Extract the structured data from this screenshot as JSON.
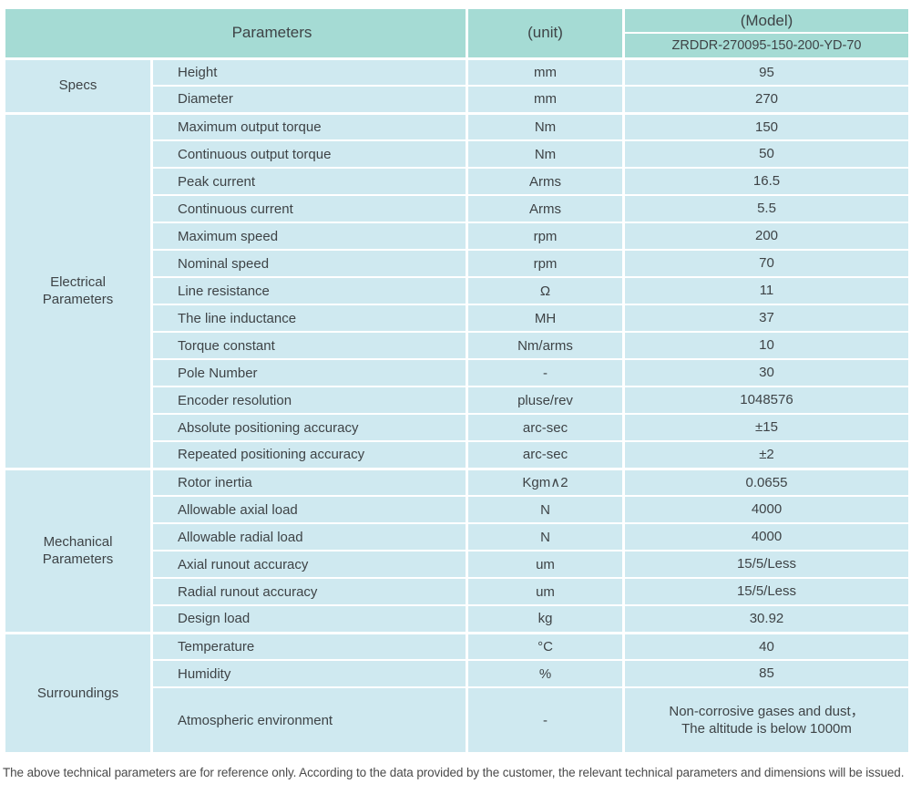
{
  "header": {
    "parameters": "Parameters",
    "unit": "(unit)",
    "model": "(Model)",
    "model_code": "ZRDDR-270095-150-200-YD-70"
  },
  "groups": [
    {
      "label": "Specs",
      "rows": [
        {
          "param": "Height",
          "unit": "mm",
          "value": "95"
        },
        {
          "param": "Diameter",
          "unit": "mm",
          "value": "270"
        }
      ]
    },
    {
      "label": "Electrical Parameters",
      "rows": [
        {
          "param": "Maximum output torque",
          "unit": "Nm",
          "value": "150"
        },
        {
          "param": "Continuous output torque",
          "unit": "Nm",
          "value": "50"
        },
        {
          "param": "Peak current",
          "unit": "Arms",
          "value": "16.5"
        },
        {
          "param": "Continuous current",
          "unit": "Arms",
          "value": "5.5"
        },
        {
          "param": "Maximum speed",
          "unit": "rpm",
          "value": "200"
        },
        {
          "param": "Nominal speed",
          "unit": "rpm",
          "value": "70"
        },
        {
          "param": "Line resistance",
          "unit": "Ω",
          "value": "11"
        },
        {
          "param": "The line inductance",
          "unit": "MH",
          "value": "37"
        },
        {
          "param": "Torque constant",
          "unit": "Nm/arms",
          "value": "10"
        },
        {
          "param": "Pole Number",
          "unit": "-",
          "value": "30"
        },
        {
          "param": "Encoder resolution",
          "unit": "pluse/rev",
          "value": "1048576"
        },
        {
          "param": "Absolute positioning accuracy",
          "unit": "arc-sec",
          "value": "±15"
        },
        {
          "param": "Repeated positioning accuracy",
          "unit": "arc-sec",
          "value": "±2"
        }
      ]
    },
    {
      "label": "Mechanical Parameters",
      "rows": [
        {
          "param": "Rotor inertia",
          "unit": "Kgm∧2",
          "value": "0.0655"
        },
        {
          "param": "Allowable axial load",
          "unit": "N",
          "value": "4000"
        },
        {
          "param": "Allowable radial load",
          "unit": "N",
          "value": "4000"
        },
        {
          "param": "Axial runout accuracy",
          "unit": "um",
          "value": "15/5/Less"
        },
        {
          "param": "Radial runout accuracy",
          "unit": "um",
          "value": "15/5/Less"
        },
        {
          "param": "Design load",
          "unit": "kg",
          "value": "30.92"
        }
      ]
    },
    {
      "label": "Surroundings",
      "rows": [
        {
          "param": "Temperature",
          "unit": "°C",
          "value": "40"
        },
        {
          "param": "Humidity",
          "unit": "%",
          "value": "85"
        },
        {
          "param": "Atmospheric environment",
          "unit": "-",
          "value": "Non-corrosive gases and dust，\nThe altitude is below 1000m"
        }
      ]
    }
  ],
  "footnote": "The above technical parameters are for reference only. According to the data provided by the customer, the relevant technical parameters and dimensions will be issued.",
  "colors": {
    "header_bg": "#a5dbd4",
    "row_bg": "#cfe9f0",
    "border": "#ffffff",
    "text": "#3e4346"
  }
}
